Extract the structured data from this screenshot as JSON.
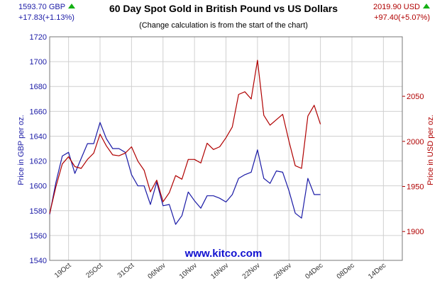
{
  "header": {
    "left_price": "1593.70 GBP",
    "left_change": "+17.83(+1.13%)",
    "right_price": "2019.90 USD",
    "right_change": "+97.40(+5.07%)",
    "up_icon": "green-up-triangle-icon"
  },
  "watermark": "www.kitco.com",
  "colors": {
    "gbp": "#1a1aa6",
    "usd": "#b00000",
    "grid": "#d0d0d0",
    "up": "#14b014"
  },
  "chart_data": {
    "type": "line",
    "title": "60 Day Spot Gold in British Pound vs US Dollars",
    "subtitle": "(Change calculation is from the start of the chart)",
    "xlabel": "",
    "ylabel": "Price in GBP per oz.",
    "y2label": "Price in USD per oz.",
    "x_ticks": [
      "19Oct",
      "25Oct",
      "31Oct",
      "06Nov",
      "10Nov",
      "16Nov",
      "22Nov",
      "28Nov",
      "04Dec",
      "08Dec",
      "14Dec"
    ],
    "x_tick_index": [
      3,
      8,
      13,
      18,
      23,
      28,
      33,
      38,
      43,
      48,
      53
    ],
    "xlim": [
      0,
      56
    ],
    "ylim": [
      1540,
      1720
    ],
    "yticks": [
      1540,
      1560,
      1580,
      1600,
      1620,
      1640,
      1660,
      1680,
      1700,
      1720
    ],
    "y2lim": [
      1868,
      2116
    ],
    "y2ticks": [
      1900,
      1950,
      2000,
      2050
    ],
    "grid": true,
    "series": [
      {
        "axis": "left",
        "values": [
          1577,
          1603,
          1624,
          1627,
          1610,
          1622,
          1634,
          1634,
          1651,
          1638,
          1630,
          1630,
          1627,
          1609,
          1600,
          1600,
          1585,
          1603,
          1584,
          1585,
          1569,
          1576,
          1595,
          1588,
          1582,
          1592,
          1592,
          1590,
          1587,
          1593,
          1606,
          1609,
          1611,
          1629,
          1606,
          1602,
          1612,
          1611,
          1596,
          1578,
          1574,
          1606,
          1593,
          1593
        ]
      },
      {
        "axis": "right",
        "values": [
          1920,
          1950,
          1975,
          1983,
          1972,
          1970,
          1980,
          1987,
          2008,
          1995,
          1985,
          1984,
          1987,
          1994,
          1978,
          1968,
          1944,
          1957,
          1933,
          1943,
          1962,
          1958,
          1980,
          1980,
          1976,
          1998,
          1991,
          1994,
          2004,
          2016,
          2052,
          2055,
          2047,
          2090,
          2029,
          2018,
          2024,
          2030,
          2000,
          1973,
          1970,
          2028,
          2040,
          2019
        ]
      }
    ]
  }
}
